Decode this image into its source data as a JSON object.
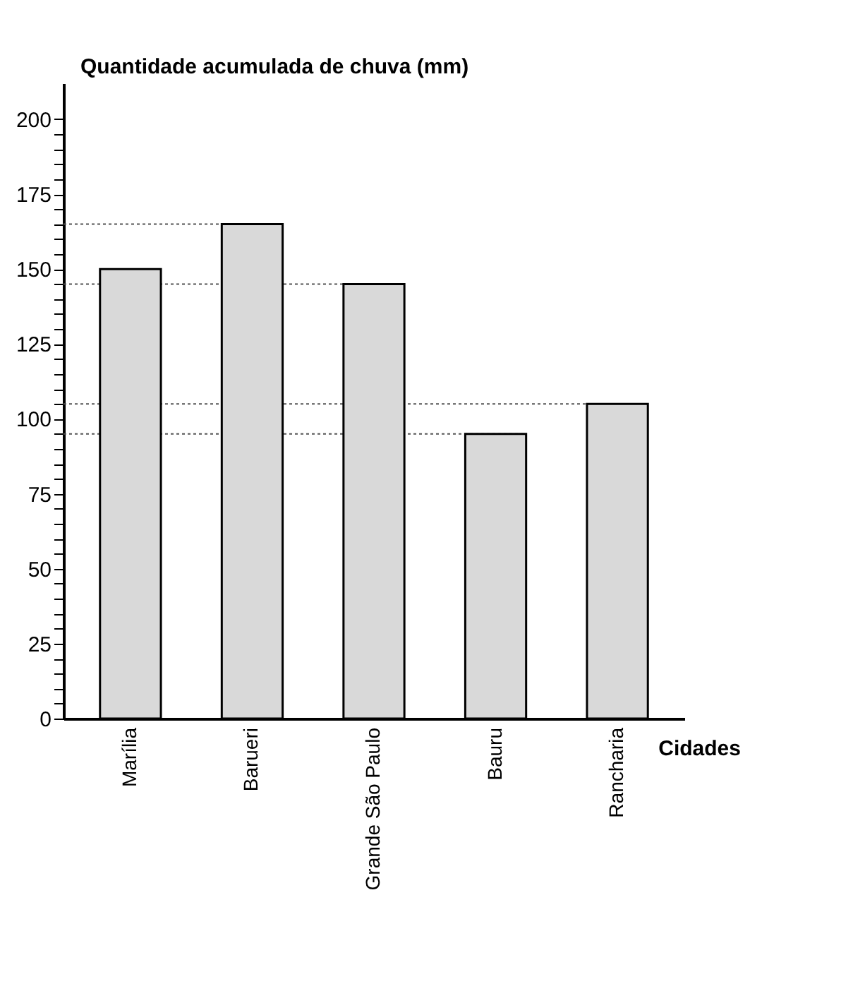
{
  "chart_data": {
    "type": "bar",
    "xlabel": "Cidades",
    "ylabel": "Quantidade acumulada de chuva (mm)",
    "categories": [
      "Marília",
      "Barueri",
      "Grande São Paulo",
      "Bauru",
      "Rancharia"
    ],
    "values": [
      150,
      165,
      145,
      95,
      105
    ],
    "color": "#d9d9d9",
    "ylim": [
      0,
      212
    ],
    "yticks": [
      0,
      {
        "value": 5,
        "label": null
      },
      {
        "value": 10,
        "label": null
      },
      {
        "value": 15,
        "label": null
      },
      {
        "value": 20,
        "label": null
      },
      25,
      {
        "value": 30,
        "label": null
      },
      {
        "value": 35,
        "label": null
      },
      {
        "value": 40,
        "label": null
      },
      {
        "value": 45,
        "label": null
      },
      50,
      {
        "value": 55,
        "label": null
      },
      {
        "value": 60,
        "label": null
      },
      {
        "value": 65,
        "label": null
      },
      {
        "value": 70,
        "label": null
      },
      75,
      {
        "value": 80,
        "label": null
      },
      {
        "value": 85,
        "label": null
      },
      {
        "value": 90,
        "label": null
      },
      {
        "value": 95,
        "label": null
      },
      100,
      {
        "value": 105,
        "label": null
      },
      {
        "value": 110,
        "label": null
      },
      {
        "value": 115,
        "label": null
      },
      {
        "value": 120,
        "label": null
      },
      125,
      {
        "value": 130,
        "label": null
      },
      {
        "value": 135,
        "label": null
      },
      {
        "value": 140,
        "label": null
      },
      {
        "value": 145,
        "label": null
      },
      150,
      {
        "value": 155,
        "label": null
      },
      {
        "value": 160,
        "label": null
      },
      {
        "value": 165,
        "label": null
      },
      {
        "value": 170,
        "label": null
      },
      175,
      {
        "value": 180,
        "label": null
      },
      {
        "value": 185,
        "label": null
      },
      {
        "value": 190,
        "label": null
      },
      {
        "value": 195,
        "label": null
      },
      200
    ],
    "ref_lines": [
      {
        "axis": "y",
        "value": 165,
        "line_style": "dotted"
      },
      {
        "axis": "y",
        "value": 145,
        "line_style": "dotted"
      },
      {
        "axis": "y",
        "value": 105,
        "line_style": "dotted"
      },
      {
        "axis": "y",
        "value": 95,
        "line_style": "dotted"
      }
    ],
    "grid": false
  }
}
